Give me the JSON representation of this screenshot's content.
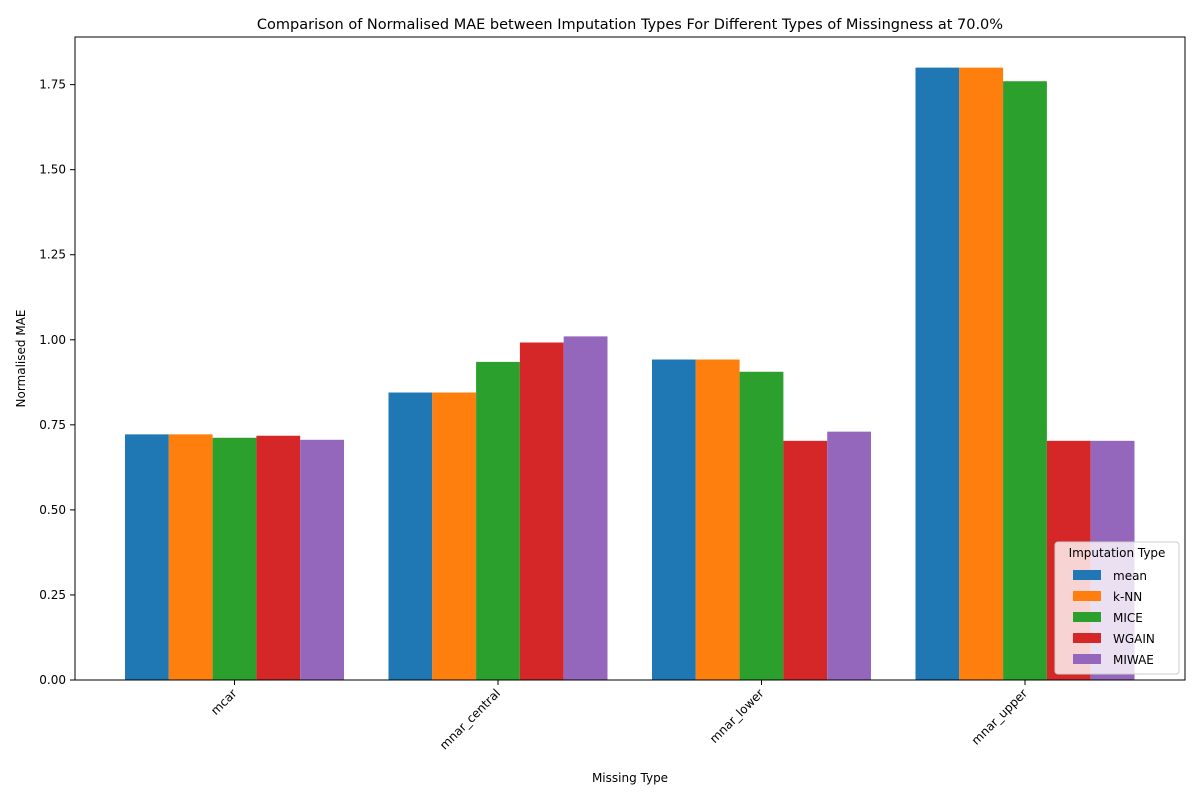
{
  "chart_data": {
    "type": "bar",
    "title": "Comparison of Normalised MAE between Imputation Types For Different Types of Missingness at 70.0%",
    "xlabel": "Missing Type",
    "ylabel": "Normalised MAE",
    "categories": [
      "mcar",
      "mnar_central",
      "mnar_lower",
      "mnar_upper"
    ],
    "series": [
      {
        "name": "mean",
        "color": "#1f77b4",
        "values": [
          0.722,
          0.845,
          0.942,
          1.8
        ]
      },
      {
        "name": "k-NN",
        "color": "#ff7f0e",
        "values": [
          0.722,
          0.845,
          0.942,
          1.8
        ]
      },
      {
        "name": "MICE",
        "color": "#2ca02c",
        "values": [
          0.712,
          0.935,
          0.906,
          1.76
        ]
      },
      {
        "name": "WGAIN",
        "color": "#d62728",
        "values": [
          0.718,
          0.992,
          0.703,
          0.703
        ]
      },
      {
        "name": "MIWAE",
        "color": "#9467bd",
        "values": [
          0.706,
          1.01,
          0.73,
          0.703
        ]
      }
    ],
    "ylim": [
      0,
      1.89
    ],
    "yticks": [
      "0.00",
      "0.25",
      "0.50",
      "0.75",
      "1.00",
      "1.25",
      "1.50",
      "1.75"
    ],
    "legend": {
      "title": "Imputation Type",
      "placement": "lower-right"
    },
    "grid": false
  }
}
